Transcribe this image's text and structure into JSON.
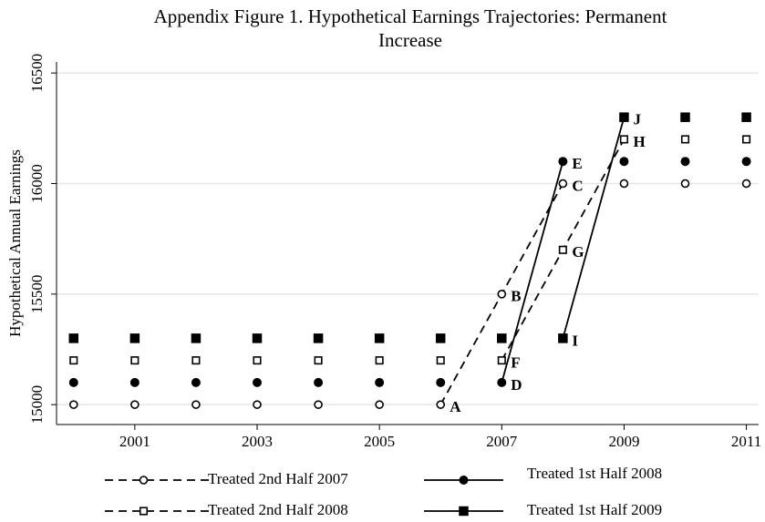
{
  "chart_data": {
    "type": "scatter",
    "title": [
      "Appendix Figure 1. Hypothetical Earnings Trajectories: Permanent",
      "Increase"
    ],
    "y_label": "Hypothetical Annual Earnings",
    "x": [
      2000,
      2001,
      2002,
      2003,
      2004,
      2005,
      2006,
      2007,
      2008,
      2009,
      2010,
      2011
    ],
    "xlim": [
      1999.72,
      2011.2
    ],
    "xticks": [
      2001,
      2003,
      2005,
      2007,
      2009,
      2011
    ],
    "ylim": [
      14910,
      16550
    ],
    "yticks": [
      15000,
      15500,
      16000,
      16500
    ],
    "grid": true,
    "legend_columns": 2,
    "series": [
      {
        "name": "Treated 2nd Half 2007",
        "color": "#000000",
        "marker": "circle-open",
        "dashed": true,
        "values": [
          15000,
          15000,
          15000,
          15000,
          15000,
          15000,
          15000,
          15500,
          16000,
          16000,
          16000,
          16000
        ],
        "line_values": [
          null,
          null,
          null,
          null,
          null,
          null,
          15000,
          15500,
          16000,
          null,
          null,
          null
        ]
      },
      {
        "name": "Treated 1st Half 2008",
        "color": "#000000",
        "marker": "circle-filled",
        "dashed": false,
        "values": [
          15100,
          15100,
          15100,
          15100,
          15100,
          15100,
          15100,
          15100,
          16100,
          16100,
          16100,
          16100
        ],
        "line_values": [
          null,
          null,
          null,
          null,
          null,
          null,
          null,
          15100,
          16100,
          null,
          null,
          null
        ]
      },
      {
        "name": "Treated 2nd Half 2008",
        "color": "#000000",
        "marker": "square-open",
        "dashed": true,
        "values": [
          15200,
          15200,
          15200,
          15200,
          15200,
          15200,
          15200,
          15200,
          15700,
          16200,
          16200,
          16200
        ],
        "line_values": [
          null,
          null,
          null,
          null,
          null,
          null,
          null,
          15200,
          15700,
          16200,
          null,
          null
        ]
      },
      {
        "name": "Treated 1st Half 2009",
        "color": "#000000",
        "marker": "square-filled",
        "dashed": false,
        "values": [
          15300,
          15300,
          15300,
          15300,
          15300,
          15300,
          15300,
          15300,
          15300,
          16300,
          16300,
          16300
        ],
        "line_values": [
          null,
          null,
          null,
          null,
          null,
          null,
          null,
          null,
          15300,
          16300,
          null,
          null
        ]
      }
    ],
    "annotations": [
      {
        "text": "A",
        "x": 2006,
        "y": 15000
      },
      {
        "text": "B",
        "x": 2007,
        "y": 15500
      },
      {
        "text": "C",
        "x": 2008,
        "y": 16000
      },
      {
        "text": "D",
        "x": 2007,
        "y": 15100
      },
      {
        "text": "E",
        "x": 2008,
        "y": 16100
      },
      {
        "text": "F",
        "x": 2007,
        "y": 15200
      },
      {
        "text": "G",
        "x": 2008,
        "y": 15700
      },
      {
        "text": "H",
        "x": 2009,
        "y": 16200
      },
      {
        "text": "I",
        "x": 2008,
        "y": 15300
      },
      {
        "text": "J",
        "x": 2009,
        "y": 16300
      }
    ]
  }
}
